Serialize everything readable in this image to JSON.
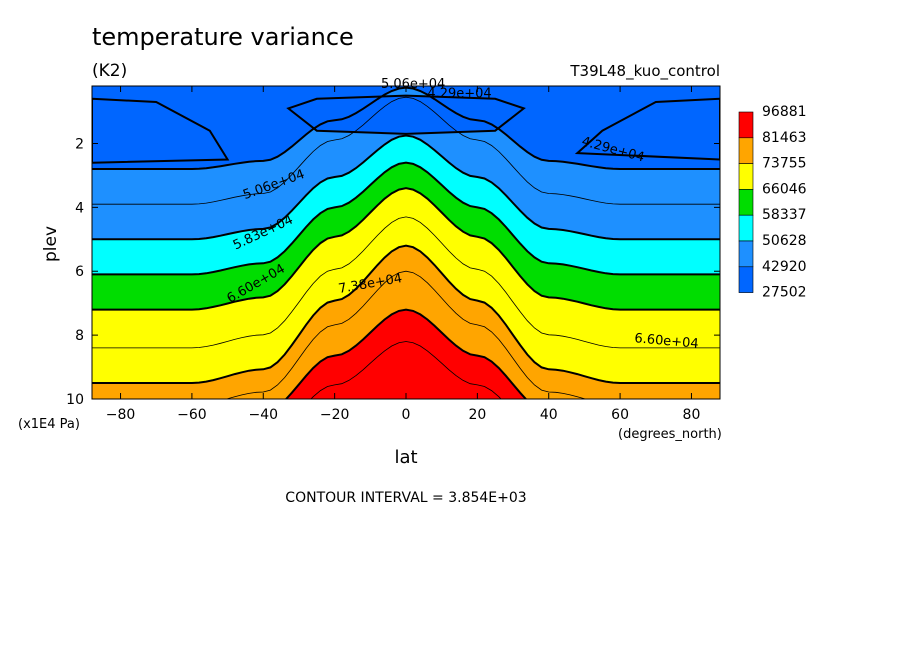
{
  "chart_data": {
    "type": "heatmap",
    "title": "temperature variance",
    "units": "(K2)",
    "dataset": "T39L48_kuo_control",
    "xlabel": "lat",
    "xunits": "(degrees_north)",
    "ylabel": "plev",
    "yunits": "(x1E4 Pa)",
    "footer": "CONTOUR INTERVAL = 3.854E+03",
    "xlim": [
      -88,
      88
    ],
    "ylim": [
      10,
      0.2
    ],
    "x_ticks": [
      -80,
      -60,
      -40,
      -20,
      0,
      20,
      40,
      60,
      80
    ],
    "y_ticks": [
      2,
      4,
      6,
      8,
      10
    ],
    "colorbar": {
      "labels": [
        "96881",
        "81463",
        "73755",
        "66046",
        "58337",
        "50628",
        "42920",
        "27502"
      ],
      "colors": [
        "#ff0000",
        "#ffa500",
        "#ffff00",
        "#00dd00",
        "#00ffff",
        "#1e90ff",
        "#0066ff"
      ]
    },
    "field": {
      "bands": [
        {
          "level": "27502",
          "color": "#0066ff"
        },
        {
          "level": "42920",
          "color": "#1e90ff"
        },
        {
          "level": "50628",
          "color": "#00ffff"
        },
        {
          "level": "58337",
          "color": "#00dd00"
        },
        {
          "level": "66046",
          "color": "#ffff00"
        },
        {
          "level": "73755",
          "color": "#ffa500"
        },
        {
          "level": "81463",
          "color": "#ff0000"
        }
      ],
      "profile": {
        "x": [
          -88,
          -60,
          -40,
          -20,
          0,
          20,
          40,
          60,
          88
        ],
        "shape": [
          0,
          0,
          0.1,
          0.6,
          1,
          0.6,
          0.1,
          0,
          0
        ]
      },
      "contours_edge_plev": [
        2.8,
        3.9,
        5.0,
        6.1,
        7.2,
        8.4,
        9.5,
        10.2,
        10.8,
        11.6
      ],
      "contours_center_plev": [
        0.25,
        0.55,
        1.75,
        2.6,
        3.4,
        4.3,
        5.2,
        6.0,
        7.2,
        8.2,
        9.2
      ],
      "band_boundary_index": [
        0,
        2,
        3,
        4,
        6,
        8
      ],
      "upper_pools": [
        {
          "x": [
            -88,
            -70,
            -55,
            -50,
            -88
          ],
          "plev": [
            0.6,
            0.7,
            1.6,
            2.5,
            2.6
          ]
        },
        {
          "x": [
            88,
            70,
            55,
            48,
            88
          ],
          "plev": [
            0.6,
            0.7,
            1.6,
            2.3,
            2.5
          ]
        },
        {
          "x": [
            -33,
            -25,
            0,
            25,
            33,
            25,
            0,
            -25
          ],
          "plev": [
            0.9,
            0.6,
            0.5,
            0.6,
            0.9,
            1.6,
            1.7,
            1.6
          ]
        }
      ]
    },
    "contour_labels": [
      {
        "text": "5.06e+04",
        "x": 2,
        "plev": 0.15,
        "angle": 0
      },
      {
        "text": "4.29e+04",
        "x": 15,
        "plev": 0.45,
        "angle": 0
      },
      {
        "text": "4.29e+04",
        "x": 58,
        "plev": 2.2,
        "angle": 15
      },
      {
        "text": "5.06e+04",
        "x": -37,
        "plev": 3.3,
        "angle": -20
      },
      {
        "text": "5.83e+04",
        "x": -40,
        "plev": 4.8,
        "angle": -25
      },
      {
        "text": "6.60e+04",
        "x": -42,
        "plev": 6.4,
        "angle": -30
      },
      {
        "text": "7.38e+04",
        "x": -10,
        "plev": 6.4,
        "angle": -10
      },
      {
        "text": "6.60e+04",
        "x": 73,
        "plev": 8.2,
        "angle": 5
      }
    ]
  }
}
